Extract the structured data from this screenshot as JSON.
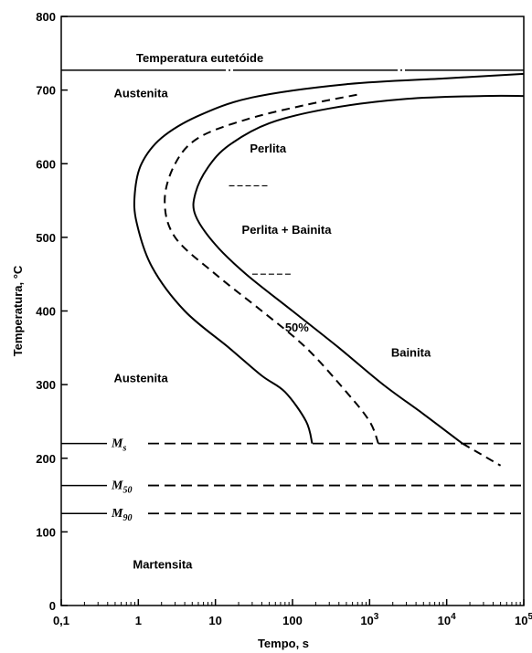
{
  "chart_data": {
    "type": "line",
    "title": "",
    "xlabel": "Tempo, s",
    "ylabel": "Temperatura, °C",
    "xscale": "log",
    "xlim": [
      0.1,
      100000
    ],
    "ylim": [
      0,
      800
    ],
    "x_ticks": [
      {
        "value": 0.1,
        "base": "0,1",
        "exp": ""
      },
      {
        "value": 1,
        "base": "1",
        "exp": ""
      },
      {
        "value": 10,
        "base": "10",
        "exp": ""
      },
      {
        "value": 100,
        "base": "100",
        "exp": ""
      },
      {
        "value": 1000,
        "base": "10",
        "exp": "3"
      },
      {
        "value": 10000,
        "base": "10",
        "exp": "4"
      },
      {
        "value": 100000,
        "base": "10",
        "exp": "5"
      }
    ],
    "y_ticks": [
      {
        "value": 0,
        "label": "0"
      },
      {
        "value": 100,
        "label": "100"
      },
      {
        "value": 200,
        "label": "200"
      },
      {
        "value": 300,
        "label": "300"
      },
      {
        "value": 400,
        "label": "400"
      },
      {
        "value": 500,
        "label": "500"
      },
      {
        "value": 600,
        "label": "600"
      },
      {
        "value": 700,
        "label": "700"
      },
      {
        "value": 800,
        "label": "800"
      }
    ],
    "grid": false,
    "eutectoid": {
      "label": "Temperatura eutetóide",
      "y": 727
    },
    "series": [
      {
        "style": "solid",
        "points": [
          [
            180,
            220
          ],
          [
            150,
            250
          ],
          [
            80,
            290
          ],
          [
            40,
            312
          ],
          [
            15,
            350
          ],
          [
            4,
            400
          ],
          [
            1.5,
            460
          ],
          [
            0.95,
            520
          ],
          [
            0.9,
            560
          ],
          [
            1.1,
            600
          ],
          [
            2,
            635
          ],
          [
            6,
            665
          ],
          [
            30,
            690
          ],
          [
            500,
            708
          ],
          [
            10000,
            716
          ],
          [
            100000,
            722
          ]
        ]
      },
      {
        "style": "dashed",
        "label": "50%",
        "points": [
          [
            1300,
            220
          ],
          [
            1000,
            250
          ],
          [
            500,
            290
          ],
          [
            150,
            350
          ],
          [
            40,
            400
          ],
          [
            10,
            450
          ],
          [
            3,
            500
          ],
          [
            2.2,
            550
          ],
          [
            3,
            600
          ],
          [
            6,
            635
          ],
          [
            25,
            660
          ],
          [
            150,
            680
          ],
          [
            800,
            695
          ]
        ]
      },
      {
        "style": "solid",
        "points": [
          [
            16000,
            220
          ],
          [
            5000,
            260
          ],
          [
            1500,
            300
          ],
          [
            400,
            350
          ],
          [
            100,
            400
          ],
          [
            25,
            450
          ],
          [
            10,
            490
          ],
          [
            5.5,
            530
          ],
          [
            5.5,
            560
          ],
          [
            8,
            595
          ],
          [
            15,
            625
          ],
          [
            50,
            655
          ],
          [
            300,
            675
          ],
          [
            3000,
            688
          ],
          [
            30000,
            692
          ],
          [
            100000,
            692
          ]
        ]
      },
      {
        "style": "dashed",
        "points": [
          [
            16000,
            220
          ],
          [
            50000,
            190
          ]
        ]
      }
    ],
    "horizontal_lines": [
      {
        "name": "Ms",
        "base": "M",
        "sub": "s",
        "y": 220
      },
      {
        "name": "M50",
        "base": "M",
        "sub": "50",
        "y": 163
      },
      {
        "name": "M90",
        "base": "M",
        "sub": "90",
        "y": 125
      }
    ],
    "short_marks": [
      {
        "x1": 15,
        "x2": 50,
        "y": 570
      },
      {
        "x1": 30,
        "x2": 100,
        "y": 450
      }
    ],
    "regions": [
      {
        "name": "austenita-top",
        "label": "Austenita",
        "x": 0.48,
        "y": 690
      },
      {
        "name": "perlita",
        "label": "Perlita",
        "x": 28,
        "y": 615
      },
      {
        "name": "perlita-bainita",
        "label": "Perlita + Bainita",
        "x": 22,
        "y": 505
      },
      {
        "name": "bainita",
        "label": "Bainita",
        "x": 1900,
        "y": 338
      },
      {
        "name": "austenita-bottom",
        "label": "Austenita",
        "x": 0.48,
        "y": 303
      },
      {
        "name": "martensita",
        "label": "Martensita",
        "x": 0.85,
        "y": 50
      },
      {
        "name": "pct-50",
        "label": "50%",
        "x": 80,
        "y": 372
      }
    ]
  }
}
